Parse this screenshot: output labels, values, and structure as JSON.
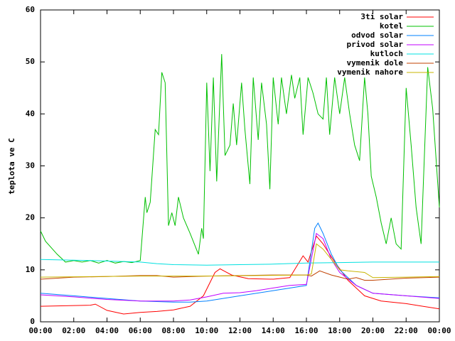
{
  "chart_data": {
    "type": "line",
    "y_label": "teplota ve C",
    "xlim": [
      0,
      24
    ],
    "ylim": [
      0,
      60
    ],
    "yticks": [
      0,
      10,
      20,
      30,
      40,
      50,
      60
    ],
    "xticks": [
      {
        "value": 0,
        "label": "00:00"
      },
      {
        "value": 2,
        "label": "02:00"
      },
      {
        "value": 4,
        "label": "04:00"
      },
      {
        "value": 6,
        "label": "06:00"
      },
      {
        "value": 8,
        "label": "08:00"
      },
      {
        "value": 10,
        "label": "10:00"
      },
      {
        "value": 12,
        "label": "12:00"
      },
      {
        "value": 14,
        "label": "14:00"
      },
      {
        "value": 16,
        "label": "16:00"
      },
      {
        "value": 18,
        "label": "18:00"
      },
      {
        "value": 20,
        "label": "20:00"
      },
      {
        "value": 22,
        "label": "22:00"
      },
      {
        "value": 24,
        "label": "00:00"
      }
    ],
    "legend": "top-right",
    "series": [
      {
        "name": "3ti solar",
        "color": "#ff0000",
        "x": [
          0,
          3,
          3.3,
          4,
          5,
          6,
          7,
          8,
          9,
          9.8,
          10.5,
          10.8,
          11.5,
          12.5,
          14,
          15,
          15.8,
          16.1,
          16.6,
          17,
          17.6,
          18.5,
          19.5,
          20.5,
          22,
          23,
          24
        ],
        "values": [
          3,
          3.2,
          3.4,
          2.2,
          1.5,
          1.8,
          2,
          2.3,
          3,
          5,
          9.5,
          10.2,
          9,
          8.3,
          8.2,
          8.5,
          12.7,
          11.5,
          16.5,
          15,
          12,
          8,
          5,
          4,
          3.5,
          3,
          2.5
        ]
      },
      {
        "name": "kotel",
        "color": "#00c000",
        "x": [
          0,
          0.3,
          1,
          1.5,
          2,
          2.5,
          3,
          3.5,
          4,
          4.5,
          5,
          5.5,
          6,
          6.3,
          6.4,
          6.6,
          6.9,
          7.1,
          7.3,
          7.5,
          7.7,
          7.9,
          8.1,
          8.3,
          8.6,
          9,
          9.5,
          9.7,
          9.8,
          10,
          10.2,
          10.4,
          10.6,
          10.9,
          11.1,
          11.4,
          11.6,
          11.8,
          12.1,
          12.3,
          12.6,
          12.8,
          13.1,
          13.3,
          13.6,
          13.8,
          14,
          14.3,
          14.5,
          14.8,
          15.1,
          15.3,
          15.6,
          15.8,
          16.1,
          16.4,
          16.7,
          17,
          17.2,
          17.4,
          17.7,
          18,
          18.3,
          18.6,
          18.9,
          19.2,
          19.5,
          19.7,
          19.9,
          20.2,
          20.5,
          20.8,
          21.1,
          21.4,
          21.7,
          22,
          22.3,
          22.6,
          22.9,
          23.3,
          23.6,
          24
        ],
        "values": [
          17.5,
          15.5,
          13,
          11.5,
          11.8,
          11.5,
          11.8,
          11.3,
          11.8,
          11.3,
          11.6,
          11.4,
          11.8,
          24,
          21,
          23,
          37,
          36,
          48,
          46,
          18.5,
          21,
          18.5,
          24,
          20,
          17,
          13,
          18,
          16,
          46,
          29,
          47,
          27,
          51.5,
          32,
          34,
          42,
          34,
          46,
          37,
          26.5,
          47,
          35,
          46,
          38,
          25.5,
          47,
          38,
          47,
          40,
          47.5,
          43,
          47,
          36,
          47,
          44,
          40,
          39,
          47,
          36,
          47,
          40,
          47,
          40,
          34,
          31,
          47,
          40,
          28,
          24,
          19,
          15,
          20,
          15,
          14,
          45,
          34,
          22,
          15,
          49,
          41,
          22
        ]
      },
      {
        "name": "odvod solar",
        "color": "#0080ff",
        "x": [
          0,
          2,
          4,
          6,
          8,
          9,
          10,
          12,
          14,
          16,
          16.5,
          16.7,
          17,
          17.5,
          18,
          19,
          20,
          22,
          24
        ],
        "values": [
          5.5,
          5,
          4.5,
          4,
          3.8,
          3.8,
          4,
          5,
          6,
          7,
          18,
          19,
          17,
          13,
          10,
          7,
          5.5,
          5,
          4.6
        ]
      },
      {
        "name": "privod solar",
        "color": "#c000ff",
        "x": [
          0,
          2,
          4,
          6,
          8,
          9,
          10,
          11,
          12,
          13,
          14,
          15,
          16,
          16.6,
          17,
          17.5,
          18,
          19,
          20,
          22,
          24
        ],
        "values": [
          5.2,
          4.8,
          4.3,
          4,
          4,
          4.2,
          4.8,
          5.5,
          5.6,
          6,
          6.5,
          7,
          7.2,
          17,
          16,
          12,
          9.5,
          7,
          5.5,
          5,
          4.5
        ]
      },
      {
        "name": "kutloch",
        "color": "#00e0e0",
        "x": [
          0,
          3,
          6,
          7,
          8,
          10,
          12,
          14,
          16,
          18,
          20,
          24
        ],
        "values": [
          12,
          11.8,
          11.5,
          11.2,
          11,
          10.9,
          11,
          11.1,
          11.3,
          11.4,
          11.5,
          11.5
        ]
      },
      {
        "name": "vymenik dole",
        "color": "#c04000",
        "x": [
          0,
          2,
          4,
          6,
          7,
          8,
          10,
          14,
          16,
          16.3,
          16.8,
          17.5,
          18.5,
          19,
          19.5,
          20,
          22,
          24
        ],
        "values": [
          8.2,
          8.6,
          8.7,
          8.9,
          8.9,
          8.6,
          8.8,
          9,
          9,
          8.8,
          9.8,
          9,
          8.2,
          8.5,
          8,
          8,
          8.4,
          8.6
        ]
      },
      {
        "name": "vymenik nahore",
        "color": "#c8b400",
        "x": [
          0,
          6,
          10,
          16,
          16.3,
          16.6,
          17,
          17.5,
          18,
          18.5,
          19.5,
          20,
          22,
          24
        ],
        "values": [
          8.6,
          8.8,
          8.8,
          9,
          9.2,
          15,
          14,
          12,
          10,
          9.8,
          9.5,
          8.5,
          8.6,
          8.7
        ]
      }
    ]
  }
}
